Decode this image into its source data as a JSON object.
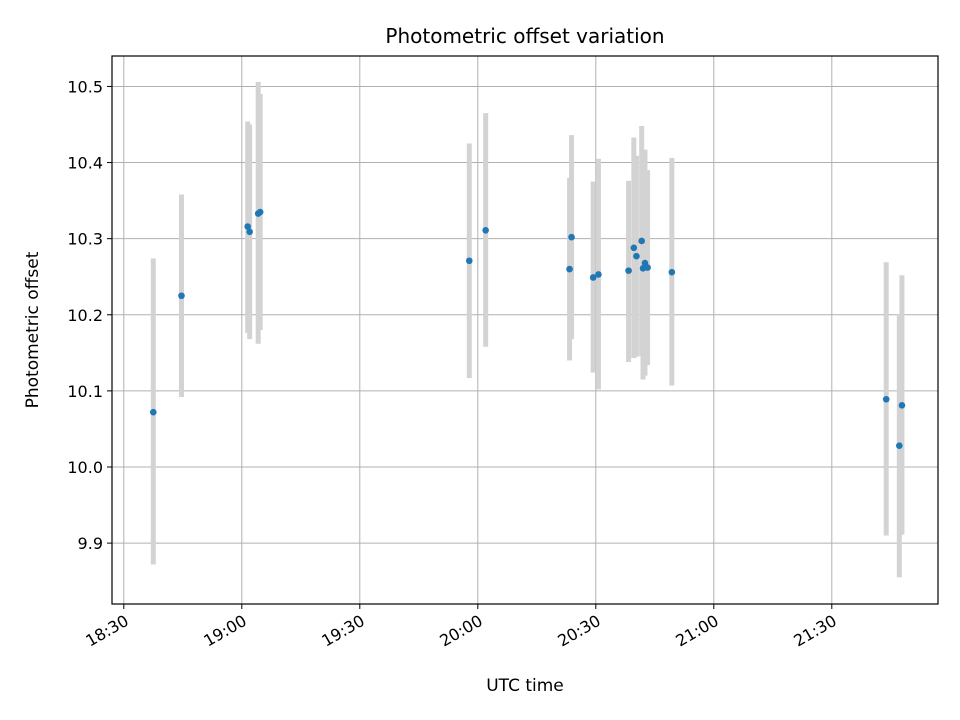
{
  "chart_data": {
    "type": "scatter",
    "title": "Photometric offset variation",
    "xlabel": "UTC time",
    "ylabel": "Photometric offset",
    "xlim": [
      "18:27",
      "21:57"
    ],
    "ylim": [
      9.82,
      10.54
    ],
    "x_ticks": [
      "18:30",
      "19:00",
      "19:30",
      "20:00",
      "20:30",
      "21:00",
      "21:30"
    ],
    "y_ticks": [
      9.9,
      10.0,
      10.1,
      10.2,
      10.3,
      10.4,
      10.5
    ],
    "grid": true,
    "colors": {
      "point": "#1f77b4",
      "errorbar": "#d3d3d3",
      "grid": "#b0b0b0"
    },
    "points": [
      {
        "time": "18:37:30",
        "value": 10.072,
        "low": 9.872,
        "high": 10.274
      },
      {
        "time": "18:44:40",
        "value": 10.225,
        "low": 10.092,
        "high": 10.358
      },
      {
        "time": "19:01:30",
        "value": 10.316,
        "low": 10.176,
        "high": 10.454
      },
      {
        "time": "19:02:00",
        "value": 10.309,
        "low": 10.168,
        "high": 10.45
      },
      {
        "time": "19:04:10",
        "value": 10.333,
        "low": 10.162,
        "high": 10.506
      },
      {
        "time": "19:04:40",
        "value": 10.335,
        "low": 10.18,
        "high": 10.49
      },
      {
        "time": "19:57:50",
        "value": 10.271,
        "low": 10.117,
        "high": 10.425
      },
      {
        "time": "20:02:00",
        "value": 10.311,
        "low": 10.158,
        "high": 10.465
      },
      {
        "time": "20:23:20",
        "value": 10.26,
        "low": 10.14,
        "high": 10.38
      },
      {
        "time": "20:23:50",
        "value": 10.302,
        "low": 10.168,
        "high": 10.436
      },
      {
        "time": "20:29:20",
        "value": 10.249,
        "low": 10.124,
        "high": 10.375
      },
      {
        "time": "20:30:40",
        "value": 10.253,
        "low": 10.102,
        "high": 10.405
      },
      {
        "time": "20:38:20",
        "value": 10.258,
        "low": 10.138,
        "high": 10.376
      },
      {
        "time": "20:39:40",
        "value": 10.288,
        "low": 10.143,
        "high": 10.433
      },
      {
        "time": "20:40:20",
        "value": 10.277,
        "low": 10.145,
        "high": 10.409
      },
      {
        "time": "20:41:40",
        "value": 10.297,
        "low": 10.146,
        "high": 10.448
      },
      {
        "time": "20:42:00",
        "value": 10.261,
        "low": 10.115,
        "high": 10.408
      },
      {
        "time": "20:42:30",
        "value": 10.268,
        "low": 10.12,
        "high": 10.417
      },
      {
        "time": "20:43:10",
        "value": 10.262,
        "low": 10.134,
        "high": 10.39
      },
      {
        "time": "20:49:20",
        "value": 10.256,
        "low": 10.107,
        "high": 10.406
      },
      {
        "time": "21:43:50",
        "value": 10.089,
        "low": 9.91,
        "high": 10.269
      },
      {
        "time": "21:47:10",
        "value": 10.028,
        "low": 9.855,
        "high": 10.201
      },
      {
        "time": "21:47:50",
        "value": 10.081,
        "low": 9.911,
        "high": 10.252
      }
    ]
  }
}
